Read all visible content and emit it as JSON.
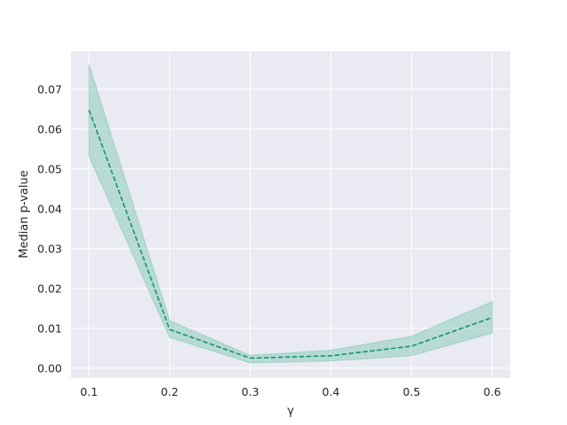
{
  "chart_data": {
    "type": "line",
    "title": "",
    "xlabel": "γ",
    "ylabel": "Median p-value",
    "x": [
      0.1,
      0.2,
      0.3,
      0.4,
      0.5,
      0.6
    ],
    "x_ticks": [
      "0.1",
      "0.2",
      "0.3",
      "0.4",
      "0.5",
      "0.6"
    ],
    "y_ticks": [
      "0.00",
      "0.01",
      "0.02",
      "0.03",
      "0.04",
      "0.05",
      "0.06",
      "0.07"
    ],
    "xlim": [
      0.0775,
      0.6225
    ],
    "ylim": [
      -0.0025,
      0.0795
    ],
    "grid": true,
    "series": [
      {
        "values": [
          0.0648,
          0.0097,
          0.0025,
          0.0031,
          0.0055,
          0.0127
        ],
        "lower": [
          0.0532,
          0.0077,
          0.0013,
          0.0018,
          0.0031,
          0.0088
        ],
        "upper": [
          0.0762,
          0.0119,
          0.0032,
          0.0045,
          0.008,
          0.0167
        ],
        "line_style": "dashed"
      }
    ],
    "colors": {
      "line": "#13946a",
      "band": "#6cc4a9",
      "plot_background": "#eaeaf2",
      "grid": "#ffffff"
    }
  }
}
